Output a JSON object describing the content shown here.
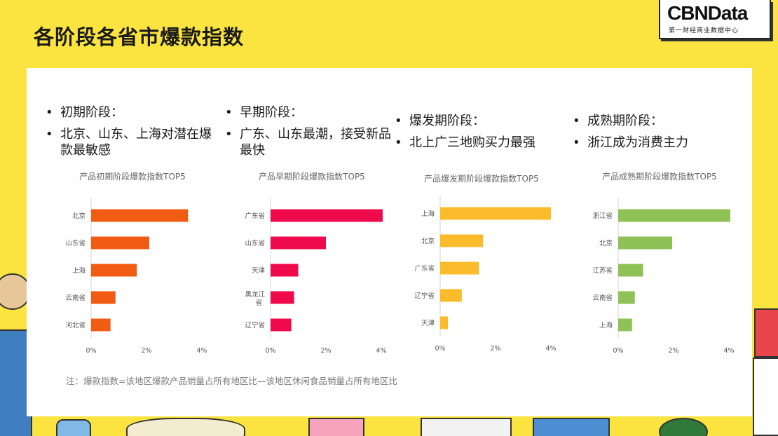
{
  "title": "各阶段各省市爆款指数",
  "logo": {
    "main": "CBNData",
    "sub": "第一财经商业数据中心"
  },
  "columns": [
    {
      "bullets": [
        "初期阶段：",
        "北京、山东、上海对潜在爆款最敏感"
      ]
    },
    {
      "bullets": [
        "早期阶段：",
        "广东、山东最潮，接受新品最快"
      ]
    },
    {
      "bullets": [
        "爆发期阶段：",
        "北上广三地购买力最强"
      ]
    },
    {
      "bullets": [
        "成熟期阶段：",
        "浙江成为消费主力"
      ]
    }
  ],
  "note": "注：爆款指数=该地区爆款产品销量占所有地区比—该地区休闲食品销量占所有地区比",
  "chart_data": [
    {
      "type": "bar",
      "orientation": "horizontal",
      "title": "产品初期阶段爆款指数TOP5",
      "categories": [
        "北京",
        "山东省",
        "上海",
        "云南省",
        "河北省"
      ],
      "values": [
        3.5,
        2.1,
        1.65,
        0.88,
        0.7
      ],
      "xlim": [
        0,
        4
      ],
      "ticks": [
        "0%",
        "2%",
        "4%"
      ],
      "color": "#f25b14"
    },
    {
      "type": "bar",
      "orientation": "horizontal",
      "title": "产品早期阶段爆款指数TOP5",
      "categories": [
        "广东省",
        "山东省",
        "天津",
        "黑龙江省",
        "辽宁省"
      ],
      "values": [
        4.05,
        2.0,
        1.0,
        0.85,
        0.75
      ],
      "xlim": [
        0,
        4
      ],
      "ticks": [
        "0%",
        "2%",
        "4%"
      ],
      "color": "#ef0b4b"
    },
    {
      "type": "bar",
      "orientation": "horizontal",
      "title": "产品爆发期阶段爆款指数TOP5",
      "categories": [
        "上海",
        "北京",
        "广东省",
        "辽宁省",
        "天津"
      ],
      "values": [
        4.0,
        1.55,
        1.4,
        0.78,
        0.28
      ],
      "xlim": [
        0,
        4
      ],
      "ticks": [
        "0%",
        "2%",
        "4%"
      ],
      "color": "#fbbb2a"
    },
    {
      "type": "bar",
      "orientation": "horizontal",
      "title": "产品成熟期阶段爆款指数TOP5",
      "categories": [
        "浙江省",
        "北京",
        "江苏省",
        "云南省",
        "上海"
      ],
      "values": [
        4.05,
        1.95,
        0.9,
        0.6,
        0.5
      ],
      "xlim": [
        0,
        4
      ],
      "ticks": [
        "0%",
        "2%",
        "4%"
      ],
      "color": "#8ec156"
    }
  ]
}
